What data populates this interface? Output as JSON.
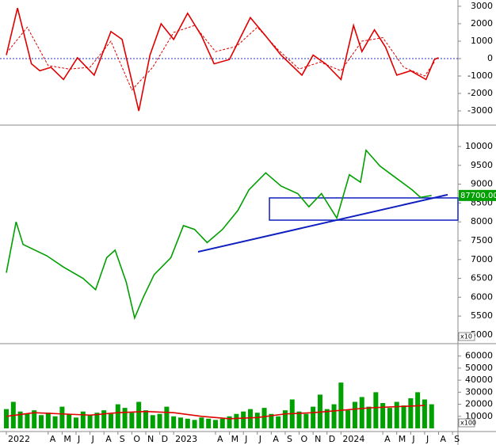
{
  "chart_data": [
    {
      "type": "line",
      "ylim": [
        -3770,
        3360
      ],
      "xlim": [
        -0.455,
        32.39
      ],
      "yticks": [
        3000,
        2000,
        1000,
        0,
        -1000,
        -2000,
        -3000
      ],
      "zero_line": true,
      "series": [
        {
          "color": "#e00000",
          "dash": false,
          "x": [
            0,
            0.8,
            1.8,
            2.4,
            3.2,
            4.1,
            5.1,
            6.3,
            7.5,
            8.3,
            9.5,
            10.3,
            11.1,
            12,
            13,
            14,
            14.9,
            16,
            17.5,
            18.6,
            19.7,
            21.2,
            22,
            22.9,
            24,
            24.9,
            25.5,
            26.4,
            27.2,
            28,
            29,
            30.1,
            30.7,
            31
          ],
          "values": [
            200,
            2900,
            -300,
            -700,
            -500,
            -1200,
            50,
            -950,
            1550,
            1100,
            -3000,
            200,
            2000,
            1100,
            2600,
            1300,
            -300,
            -50,
            2350,
            1300,
            200,
            -950,
            200,
            -300,
            -1200,
            1900,
            400,
            1650,
            650,
            -950,
            -700,
            -1200,
            -50,
            50
          ]
        },
        {
          "color": "#e00000",
          "dash": true,
          "x": [
            0,
            1.5,
            3,
            4.5,
            6,
            7.5,
            9,
            10.5,
            12,
            13.5,
            15,
            16.5,
            18,
            19.5,
            21,
            22.5,
            24,
            25.5,
            27,
            28.5,
            30,
            30.7
          ],
          "values": [
            300,
            1800,
            -400,
            -600,
            -500,
            1000,
            -1800,
            -500,
            1500,
            1900,
            400,
            700,
            1800,
            500,
            -600,
            -200,
            -700,
            1000,
            1200,
            -500,
            -1000,
            -200
          ]
        }
      ]
    },
    {
      "type": "line",
      "ylim": [
        4810,
        10525
      ],
      "xlim": [
        -0.455,
        32.39
      ],
      "yticks": [
        10000,
        9500,
        9000,
        8500,
        8000,
        7500,
        7000,
        6500,
        6000,
        5500,
        5000
      ],
      "unit_label": "x10",
      "last_label": "87700.00",
      "series": [
        {
          "color": "#00a000",
          "dash": false,
          "x": [
            0,
            0.7,
            1.2,
            2.9,
            4.1,
            5.5,
            6.4,
            7.2,
            7.8,
            8.6,
            9.2,
            9.8,
            10.6,
            11.8,
            12.7,
            13.5,
            14.4,
            15.5,
            16.6,
            17.4,
            18.6,
            19.7,
            20.9,
            21.7,
            22.6,
            23.7,
            24.6,
            25.4,
            25.8,
            26.8,
            28,
            29.1,
            29.7,
            30.5
          ],
          "values": [
            6650,
            8000,
            7400,
            7100,
            6800,
            6500,
            6200,
            7050,
            7250,
            6400,
            5450,
            5980,
            6600,
            7050,
            7900,
            7800,
            7450,
            7800,
            8300,
            8850,
            9300,
            8950,
            8750,
            8400,
            8750,
            8100,
            9250,
            9050,
            9900,
            9480,
            9150,
            8850,
            8650,
            8700
          ]
        }
      ],
      "trendline": {
        "color": "#1020c0",
        "x": [
          13.75,
          31.65
        ],
        "values": [
          7205,
          8720
        ]
      },
      "box": {
        "color": "#1020c0",
        "x": [
          18.87,
          32.39
        ],
        "values": [
          8045,
          8635
        ]
      }
    },
    {
      "type": "bar",
      "ylim": [
        0,
        69000
      ],
      "xlim": [
        -0.455,
        32.39
      ],
      "yticks": [
        60000,
        50000,
        40000,
        30000,
        20000,
        10000
      ],
      "unit_label": "x100",
      "xticks": [
        {
          "value": 0,
          "label": "2022"
        },
        {
          "value": 3,
          "label": "A"
        },
        {
          "value": 4,
          "label": "M"
        },
        {
          "value": 5,
          "label": "J"
        },
        {
          "value": 6,
          "label": "J"
        },
        {
          "value": 7,
          "label": "A"
        },
        {
          "value": 8,
          "label": "S"
        },
        {
          "value": 9,
          "label": "O"
        },
        {
          "value": 10,
          "label": "N"
        },
        {
          "value": 11,
          "label": "D"
        },
        {
          "value": 12,
          "label": "2023"
        },
        {
          "value": 15,
          "label": "A"
        },
        {
          "value": 16,
          "label": "M"
        },
        {
          "value": 17,
          "label": "J"
        },
        {
          "value": 18,
          "label": "J"
        },
        {
          "value": 19,
          "label": "A"
        },
        {
          "value": 20,
          "label": "S"
        },
        {
          "value": 21,
          "label": "O"
        },
        {
          "value": 22,
          "label": "N"
        },
        {
          "value": 23,
          "label": "D"
        },
        {
          "value": 24,
          "label": "2024"
        },
        {
          "value": 27,
          "label": "A"
        },
        {
          "value": 28,
          "label": "M"
        },
        {
          "value": 29,
          "label": "J"
        },
        {
          "value": 30,
          "label": "J"
        },
        {
          "value": 31,
          "label": "A"
        },
        {
          "value": 32,
          "label": "S"
        }
      ],
      "series": [
        {
          "kind": "bar",
          "color": "#00a000",
          "x": [
            0,
            0.5,
            1,
            1.5,
            2,
            2.5,
            3,
            3.5,
            4,
            4.5,
            5,
            5.5,
            6,
            6.5,
            7,
            7.5,
            8,
            8.5,
            9,
            9.5,
            10,
            10.5,
            11,
            11.5,
            12,
            12.5,
            13,
            13.5,
            14,
            14.5,
            15,
            15.5,
            16,
            16.5,
            17,
            17.5,
            18,
            18.5,
            19,
            19.5,
            20,
            20.5,
            21,
            21.5,
            22,
            22.5,
            23,
            23.5,
            24,
            24.5,
            25,
            25.5,
            26,
            26.5,
            27,
            27.5,
            28,
            28.5,
            29,
            29.5,
            30,
            30.5
          ],
          "values": [
            16000,
            22000,
            14000,
            12000,
            15000,
            11000,
            13000,
            10000,
            18000,
            12000,
            9000,
            14000,
            11000,
            13000,
            15000,
            12000,
            20000,
            17000,
            13000,
            22000,
            15000,
            11000,
            12000,
            18000,
            10000,
            9000,
            8000,
            7000,
            9000,
            8000,
            7000,
            8000,
            10000,
            12000,
            14000,
            16000,
            13000,
            17000,
            12000,
            10000,
            15000,
            24000,
            14000,
            12000,
            18000,
            28000,
            16000,
            20000,
            38000,
            15000,
            22000,
            26000,
            18000,
            30000,
            21000,
            17000,
            22000,
            19000,
            25000,
            30000,
            24000,
            20000
          ]
        },
        {
          "kind": "line",
          "color": "#e00000",
          "x": [
            0,
            2,
            4,
            6,
            8,
            10,
            12,
            14,
            16,
            18,
            20,
            22,
            24,
            26,
            28,
            30
          ],
          "values": [
            10000,
            13000,
            12000,
            11000,
            13000,
            14000,
            13000,
            10000,
            8000,
            9000,
            12000,
            13000,
            15000,
            17000,
            18000,
            19000
          ]
        }
      ]
    }
  ]
}
